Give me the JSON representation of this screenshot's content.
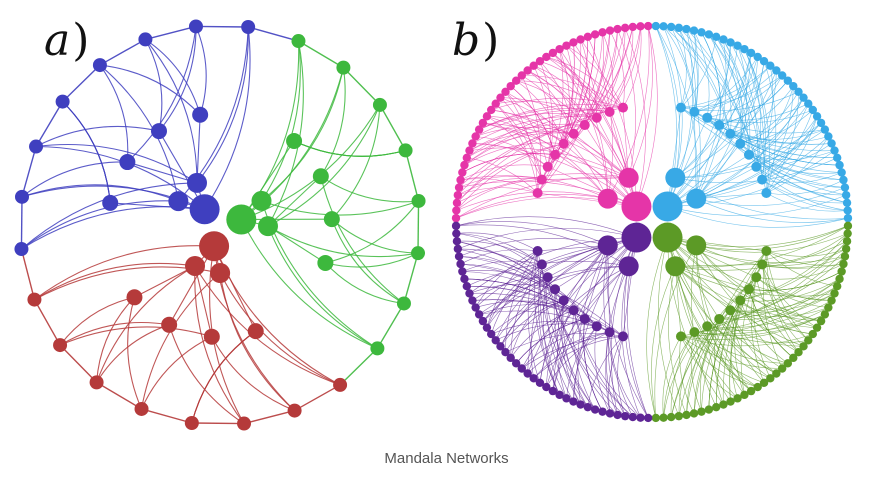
{
  "figure": {
    "caption": "Mandala Networks",
    "panels": [
      {
        "label_letter": "a",
        "label_paren": ")",
        "groups": [
          {
            "color": "#3f3fbf"
          },
          {
            "color": "#3db83d"
          },
          {
            "color": "#b53a3a"
          }
        ],
        "outer_nodes_per_group": 8,
        "middle_nodes_per_group": 4,
        "inner_nodes_per_group": 2
      },
      {
        "label_letter": "b",
        "label_paren": ")",
        "groups": [
          {
            "color": "#e535a8"
          },
          {
            "color": "#38a9e6"
          },
          {
            "color": "#5c9a26"
          },
          {
            "color": "#5e2595"
          }
        ],
        "outer_nodes_per_group": 40,
        "middle_nodes_per_group": 10,
        "inner_nodes_per_group": 2
      }
    ]
  }
}
